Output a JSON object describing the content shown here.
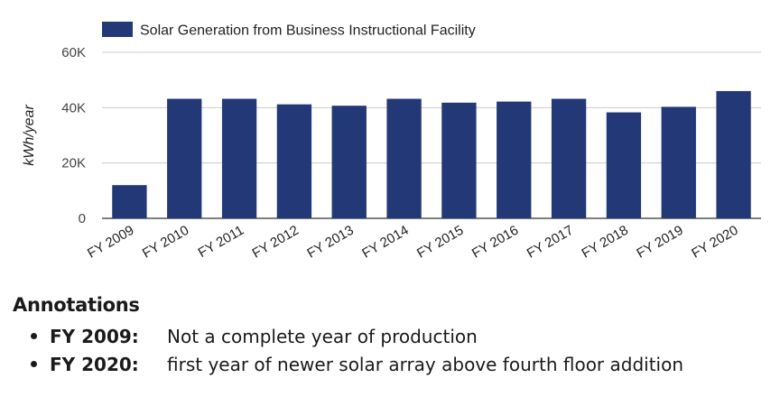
{
  "chart_data": {
    "type": "bar",
    "categories": [
      "FY 2009",
      "FY 2010",
      "FY 2011",
      "FY 2012",
      "FY 2013",
      "FY 2014",
      "FY 2015",
      "FY 2016",
      "FY 2017",
      "FY 2018",
      "FY 2019",
      "FY 2020"
    ],
    "series": [
      {
        "name": "Solar Generation from Business Instructional Facility",
        "values": [
          12000,
          43200,
          43200,
          41200,
          40700,
          43200,
          41800,
          42200,
          43200,
          38300,
          40300,
          46000
        ],
        "color": "#233876"
      }
    ],
    "xlabel": "",
    "ylabel": "kWh/year",
    "ylim": [
      0,
      60000
    ],
    "yticks": [
      0,
      20000,
      40000,
      60000
    ],
    "ytick_labels": [
      "0",
      "20K",
      "40K",
      "60K"
    ],
    "grid": true,
    "legend_position": "top"
  },
  "annotations": {
    "heading": "Annotations",
    "items": [
      {
        "term": "FY 2009:",
        "text": "Not a complete year of production"
      },
      {
        "term": "FY 2020:",
        "text": "first year of newer solar array above fourth floor addition"
      }
    ]
  }
}
